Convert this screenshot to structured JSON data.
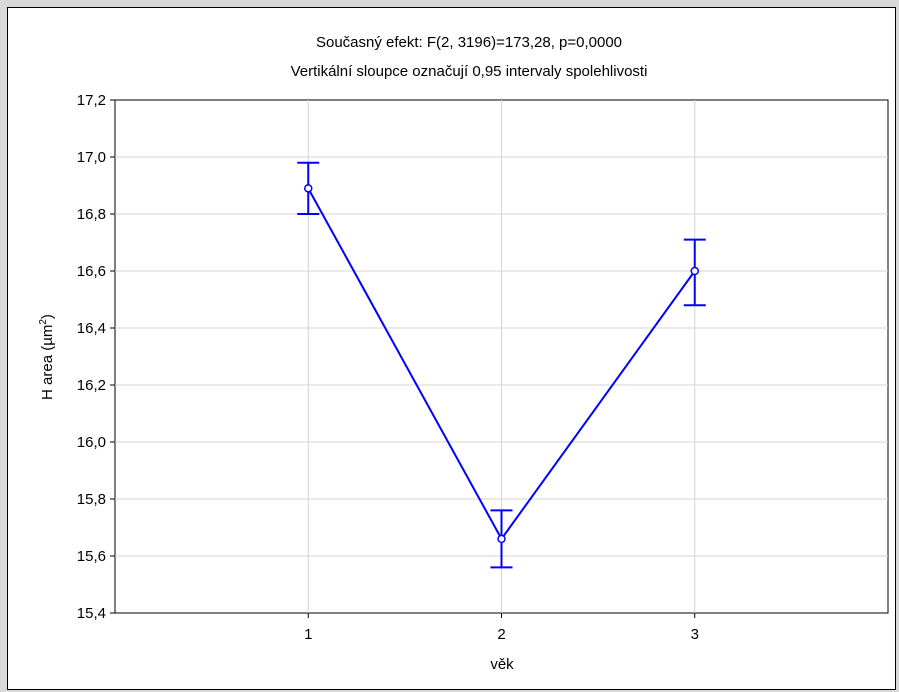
{
  "chart_data": {
    "type": "line",
    "title": "Současný efekt: F(2, 3196)=173,28, p=0,0000",
    "subtitle": "Vertikální sloupce označují 0,95 intervaly spolehlivosti",
    "xlabel": "věk",
    "ylabel": "H area (µm",
    "ylabel_superscript": "2",
    "ylabel_close": ")",
    "categories": [
      "1",
      "2",
      "3"
    ],
    "series": [
      {
        "values": [
          16.89,
          15.66,
          16.6
        ],
        "ci_lower": [
          16.8,
          15.56,
          16.48
        ],
        "ci_upper": [
          16.98,
          15.76,
          16.71
        ],
        "color": "#0000ff"
      }
    ],
    "ylim": [
      15.4,
      17.2
    ],
    "yticks": [
      "15,4",
      "15,6",
      "15,8",
      "16,0",
      "16,2",
      "16,4",
      "16,6",
      "16,8",
      "17,0",
      "17,2"
    ],
    "xlim": [
      0,
      4
    ],
    "grid": true
  }
}
